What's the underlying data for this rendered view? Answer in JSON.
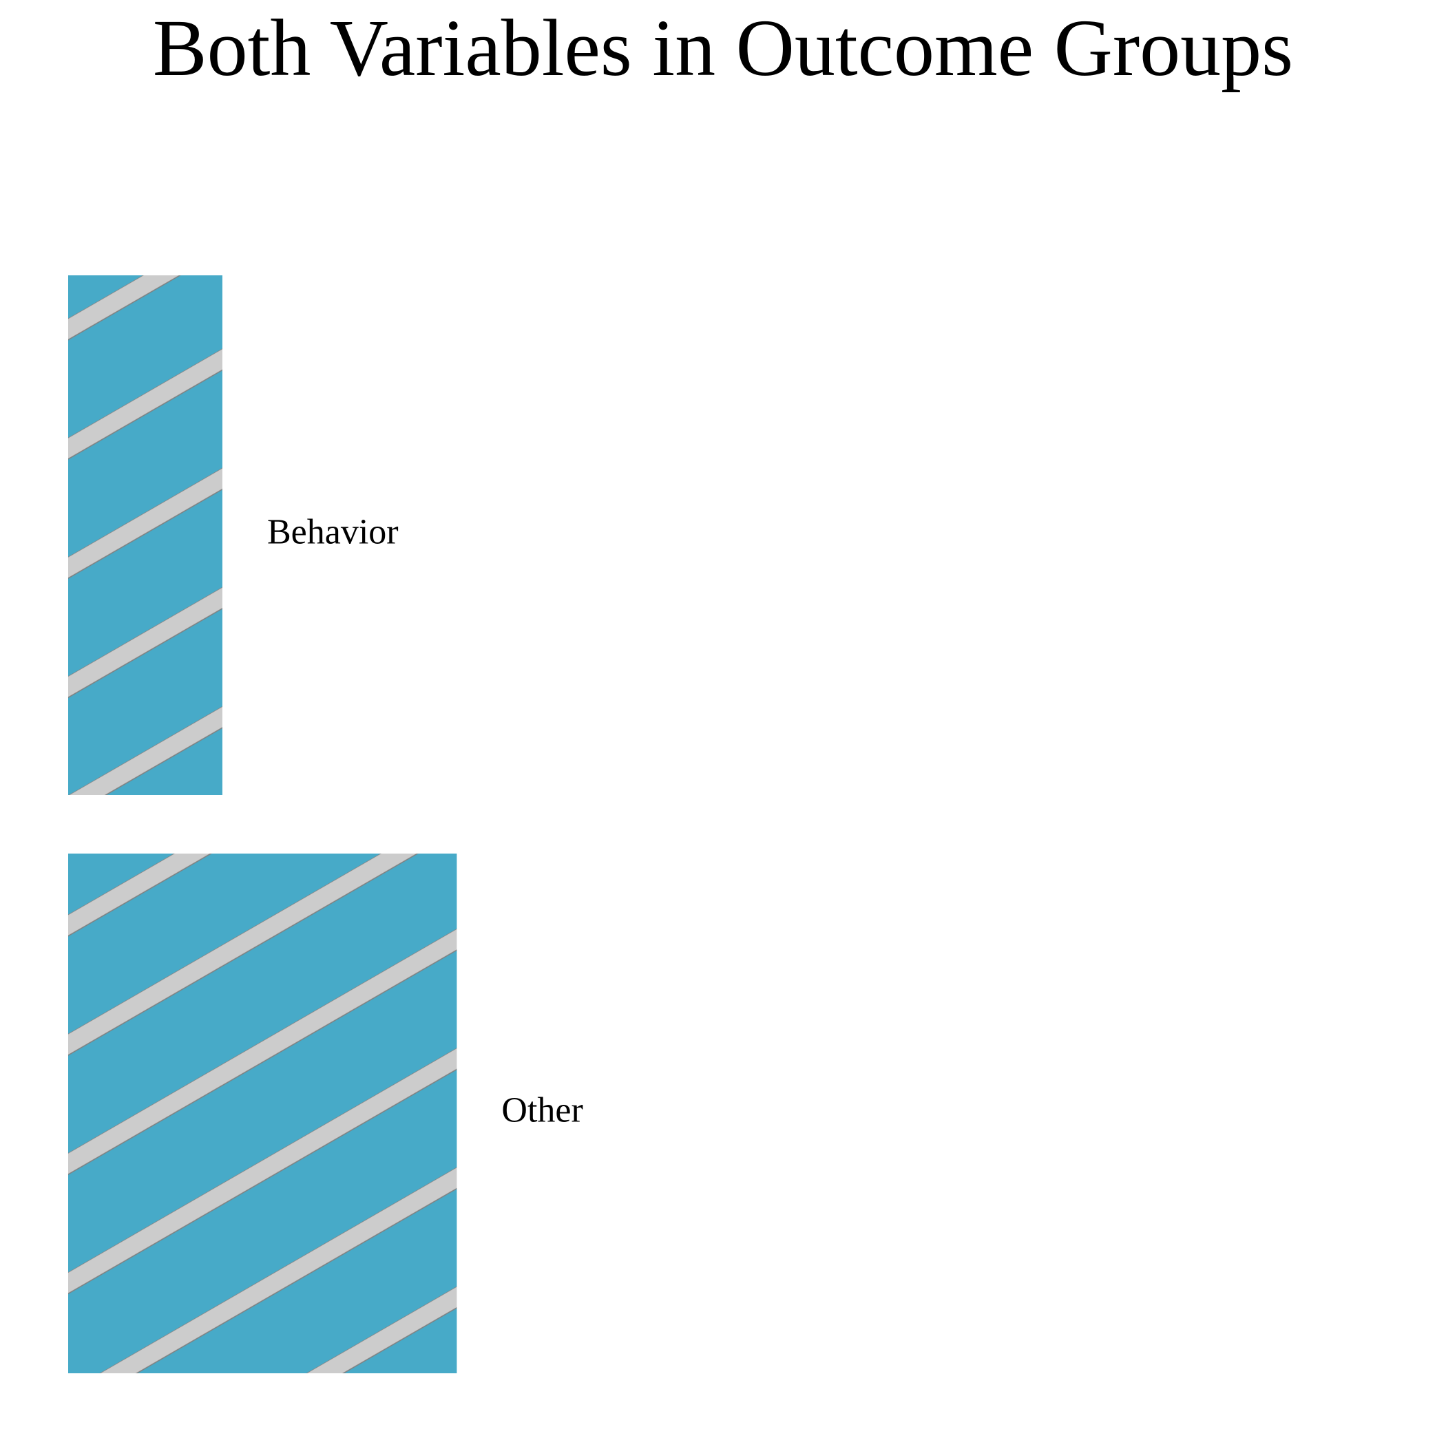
{
  "chart_data": {
    "type": "bar",
    "orientation": "horizontal",
    "title": "Both Variables in Outcome Groups",
    "categories": [
      "Behavior",
      "Other"
    ],
    "values": [
      2.5,
      6.3
    ],
    "xlabel": "",
    "ylabel": "",
    "xlim": [
      0,
      22
    ],
    "grid": false,
    "legend": "none",
    "colors": {
      "bar_fill": "#47aac8",
      "stripe": "#cccccc",
      "stripe_edge": "#7f7f7f"
    }
  }
}
